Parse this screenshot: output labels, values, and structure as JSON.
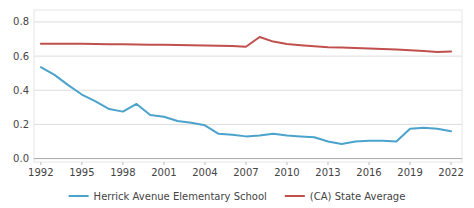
{
  "chart_data": {
    "type": "line",
    "x": [
      1992,
      1993,
      1994,
      1995,
      1996,
      1997,
      1998,
      1999,
      2000,
      2001,
      2002,
      2003,
      2004,
      2005,
      2006,
      2007,
      2008,
      2009,
      2010,
      2011,
      2012,
      2013,
      2014,
      2015,
      2016,
      2017,
      2018,
      2019,
      2020,
      2021,
      2022
    ],
    "series": [
      {
        "name": "Herrick Avenue Elementary School",
        "color": "#4ba3cc",
        "values": [
          0.535,
          0.49,
          0.43,
          0.375,
          0.335,
          0.29,
          0.275,
          0.32,
          0.255,
          0.245,
          0.22,
          0.21,
          0.195,
          0.145,
          0.14,
          0.13,
          0.135,
          0.145,
          0.135,
          0.13,
          0.125,
          0.1,
          0.085,
          0.1,
          0.105,
          0.105,
          0.1,
          0.175,
          0.18,
          0.175,
          0.16
        ]
      },
      {
        "name": "(CA) State Average",
        "color": "#c0504d",
        "values": [
          0.672,
          0.672,
          0.672,
          0.672,
          0.671,
          0.67,
          0.669,
          0.668,
          0.667,
          0.666,
          0.665,
          0.664,
          0.662,
          0.661,
          0.659,
          0.655,
          0.712,
          0.685,
          0.671,
          0.664,
          0.658,
          0.652,
          0.65,
          0.648,
          0.645,
          0.641,
          0.638,
          0.634,
          0.63,
          0.624,
          0.627
        ]
      }
    ],
    "xlim": [
      1991.5,
      2022.8
    ],
    "ylim": [
      -0.02,
      0.87
    ],
    "xticks": [
      1992,
      1995,
      1998,
      2001,
      2004,
      2007,
      2010,
      2013,
      2016,
      2019,
      2022
    ],
    "yticks": [
      {
        "value": 0,
        "label": "0.0"
      },
      0.2,
      0.4,
      0.6,
      0.8
    ],
    "grid": true,
    "legend": "bottom"
  }
}
